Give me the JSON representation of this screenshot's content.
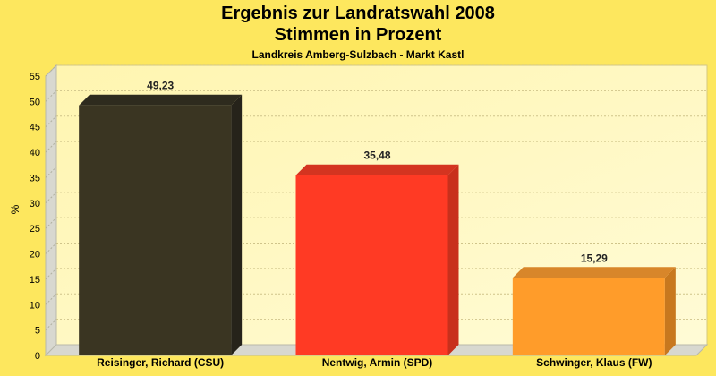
{
  "titles": {
    "line1": "Ergebnis zur Landratswahl 2008",
    "line2": "Stimmen in Prozent",
    "subtitle": "Landkreis Amberg-Sulzbach - Markt Kastl"
  },
  "chart_data": {
    "type": "bar",
    "title": "Ergebnis zur Landratswahl 2008 Stimmen in Prozent",
    "subtitle": "Landkreis Amberg-Sulzbach - Markt Kastl",
    "xlabel": "",
    "ylabel": "%",
    "ylim": [
      0,
      55
    ],
    "yticks": [
      0,
      5,
      10,
      15,
      20,
      25,
      30,
      35,
      40,
      45,
      50,
      55
    ],
    "grid": true,
    "categories": [
      "Reisinger, Richard (CSU)",
      "Nentwig, Armin (SPD)",
      "Schwinger, Klaus (FW)"
    ],
    "values": [
      49.23,
      35.48,
      15.29
    ],
    "value_labels": [
      "49,23",
      "35,48",
      "15,29"
    ],
    "colors": [
      "#3a3522",
      "#ff3a24",
      "#ff9c2a"
    ],
    "side_colors": [
      "#26231a",
      "#c8301c",
      "#c8781e"
    ],
    "top_colors": [
      "#2e2b1e",
      "#d43420",
      "#d8862a"
    ]
  }
}
